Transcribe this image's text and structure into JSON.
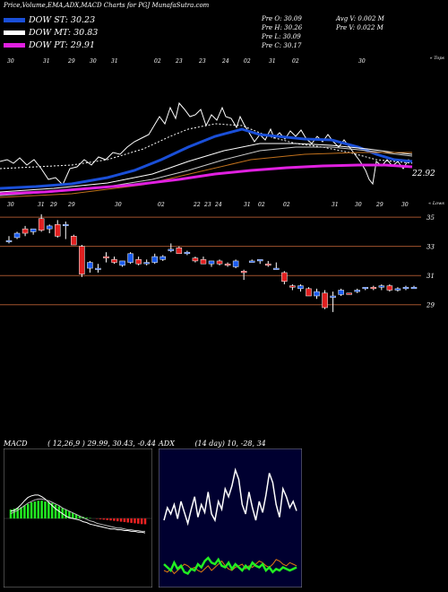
{
  "header": {
    "title": "Price,Volume,EMA,ADX,MACD Charts for PGJ MunafaSutra.com"
  },
  "legend": [
    {
      "label": "DOW ST: 30.23",
      "color": "#1a4fd8"
    },
    {
      "label": "DOW MT: 30.83",
      "color": "#ffffff"
    },
    {
      "label": "DOW PT: 29.91",
      "color": "#e020e0"
    }
  ],
  "quote": {
    "open": "Pre  O: 30.09",
    "high": "Pre  H: 30.26",
    "low": "Pre  L: 30.09",
    "close": "Pre  C: 30.17",
    "avg_volume": "Avg V: 0.002  M",
    "pre_volume": "Pre  V: 0.022  M"
  },
  "ema_panel": {
    "top_tag": "« Tops",
    "bottom_tag": "« Lows",
    "last_value": "22.92",
    "top_dates": [
      "30",
      "31",
      "29",
      "30",
      "31",
      "02",
      "23",
      "23",
      "24",
      "02",
      "31",
      "02",
      "30"
    ],
    "bottom_dates": [
      "30",
      "31",
      "29",
      "29",
      "30",
      "02",
      "22",
      "23",
      "24",
      "31",
      "02",
      "02",
      "31",
      "30",
      "29",
      "30"
    ]
  },
  "candle_panel": {
    "price_labels": [
      "35",
      "33",
      "31",
      "29"
    ]
  },
  "macd": {
    "label": "MACD",
    "params": "( 12,26,9 ) 29.99, 30.43, -0.44"
  },
  "adx": {
    "label": "ADX",
    "params": "(14 day) 10, -28, 34"
  },
  "colors": {
    "up": "#1a5cf0",
    "down": "#e02020",
    "ema_short": "#1a4fd8",
    "ema_long": "#e020e0",
    "grid": "#a0522d",
    "macd_hist": "#22ee22",
    "adx_green": "#22ee22",
    "adx_orange": "#e07a10",
    "adx_bg": "#000030"
  },
  "chart_data": {
    "type": "candlestick",
    "y_ticks": [
      35,
      33,
      31,
      29
    ],
    "ylim": [
      28,
      35.5
    ],
    "candles": [
      {
        "o": 33.4,
        "h": 33.7,
        "l": 33.2,
        "c": 33.4
      },
      {
        "o": 33.6,
        "h": 34.0,
        "l": 33.5,
        "c": 33.9
      },
      {
        "o": 34.2,
        "h": 34.4,
        "l": 33.7,
        "c": 33.9
      },
      {
        "o": 34.0,
        "h": 34.2,
        "l": 33.8,
        "c": 34.2
      },
      {
        "o": 34.9,
        "h": 35.2,
        "l": 34.0,
        "c": 34.1
      },
      {
        "o": 34.2,
        "h": 34.5,
        "l": 33.9,
        "c": 34.4
      },
      {
        "o": 34.5,
        "h": 34.8,
        "l": 33.6,
        "c": 33.7
      },
      {
        "o": 34.5,
        "h": 34.7,
        "l": 33.5,
        "c": 34.5
      },
      {
        "o": 33.7,
        "h": 33.8,
        "l": 33.1,
        "c": 33.1
      },
      {
        "o": 33.0,
        "h": 33.1,
        "l": 30.9,
        "c": 31.1
      },
      {
        "o": 31.5,
        "h": 32.0,
        "l": 31.2,
        "c": 31.9
      },
      {
        "o": 31.5,
        "h": 31.8,
        "l": 31.2,
        "c": 31.5
      },
      {
        "o": 32.3,
        "h": 32.6,
        "l": 31.9,
        "c": 32.2
      },
      {
        "o": 32.1,
        "h": 32.3,
        "l": 31.8,
        "c": 31.9
      },
      {
        "o": 31.7,
        "h": 32.0,
        "l": 31.6,
        "c": 32.0
      },
      {
        "o": 31.9,
        "h": 32.6,
        "l": 31.8,
        "c": 32.5
      },
      {
        "o": 32.1,
        "h": 32.3,
        "l": 31.7,
        "c": 31.8
      },
      {
        "o": 31.9,
        "h": 32.1,
        "l": 31.7,
        "c": 31.9
      },
      {
        "o": 31.9,
        "h": 32.5,
        "l": 31.8,
        "c": 32.3
      },
      {
        "o": 32.1,
        "h": 32.4,
        "l": 32.0,
        "c": 32.3
      },
      {
        "o": 32.7,
        "h": 33.2,
        "l": 32.6,
        "c": 32.8
      },
      {
        "o": 32.9,
        "h": 33.0,
        "l": 32.5,
        "c": 32.5
      },
      {
        "o": 32.5,
        "h": 32.7,
        "l": 32.4,
        "c": 32.6
      },
      {
        "o": 32.2,
        "h": 32.3,
        "l": 31.9,
        "c": 32.0
      },
      {
        "o": 32.1,
        "h": 32.3,
        "l": 31.8,
        "c": 31.8
      },
      {
        "o": 31.8,
        "h": 32.0,
        "l": 31.6,
        "c": 32.0
      },
      {
        "o": 32.0,
        "h": 32.1,
        "l": 31.7,
        "c": 31.8
      },
      {
        "o": 31.8,
        "h": 31.9,
        "l": 31.6,
        "c": 31.7
      },
      {
        "o": 31.6,
        "h": 32.1,
        "l": 31.5,
        "c": 32.0
      },
      {
        "o": 31.3,
        "h": 31.4,
        "l": 30.7,
        "c": 31.2
      },
      {
        "o": 31.9,
        "h": 32.1,
        "l": 31.9,
        "c": 32.0
      },
      {
        "o": 32.0,
        "h": 32.1,
        "l": 31.8,
        "c": 32.1
      },
      {
        "o": 31.8,
        "h": 32.0,
        "l": 31.6,
        "c": 31.7
      },
      {
        "o": 31.5,
        "h": 31.9,
        "l": 31.4,
        "c": 31.5
      },
      {
        "o": 31.2,
        "h": 31.3,
        "l": 30.4,
        "c": 30.6
      },
      {
        "o": 30.3,
        "h": 30.4,
        "l": 30.0,
        "c": 30.2
      },
      {
        "o": 30.1,
        "h": 30.4,
        "l": 29.9,
        "c": 30.3
      },
      {
        "o": 30.1,
        "h": 30.2,
        "l": 29.6,
        "c": 29.6
      },
      {
        "o": 29.6,
        "h": 30.1,
        "l": 29.4,
        "c": 29.9
      },
      {
        "o": 29.8,
        "h": 30.0,
        "l": 28.7,
        "c": 28.8
      },
      {
        "o": 29.5,
        "h": 29.9,
        "l": 28.5,
        "c": 29.6
      },
      {
        "o": 29.7,
        "h": 30.1,
        "l": 29.6,
        "c": 30.0
      },
      {
        "o": 29.8,
        "h": 29.8,
        "l": 29.7,
        "c": 29.7
      },
      {
        "o": 29.9,
        "h": 30.1,
        "l": 29.8,
        "c": 30.0
      },
      {
        "o": 30.1,
        "h": 30.2,
        "l": 30.0,
        "c": 30.2
      },
      {
        "o": 30.2,
        "h": 30.3,
        "l": 30.0,
        "c": 30.1
      },
      {
        "o": 30.2,
        "h": 30.4,
        "l": 30.0,
        "c": 30.3
      },
      {
        "o": 30.3,
        "h": 30.4,
        "l": 29.9,
        "c": 30.0
      },
      {
        "o": 30.0,
        "h": 30.2,
        "l": 29.9,
        "c": 30.1
      },
      {
        "o": 30.1,
        "h": 30.3,
        "l": 30.0,
        "c": 30.2
      },
      {
        "o": 30.1,
        "h": 30.3,
        "l": 30.1,
        "c": 30.2
      }
    ],
    "macd_hist": [
      1.1,
      1.2,
      1.3,
      1.4,
      1.6,
      1.8,
      2.0,
      2.1,
      2.2,
      2.2,
      2.1,
      2.0,
      1.9,
      1.7,
      1.5,
      1.3,
      1.1,
      0.9,
      0.7,
      0.5,
      0.3,
      0.2,
      0.1,
      0.05,
      0.0,
      -0.05,
      -0.1,
      -0.15,
      -0.2,
      -0.25,
      -0.3,
      -0.35,
      -0.4,
      -0.45,
      -0.5,
      -0.55,
      -0.6,
      -0.65,
      -0.7,
      -0.72
    ],
    "macd_line": [
      0.9,
      1.0,
      1.3,
      1.7,
      2.2,
      2.6,
      2.8,
      2.9,
      2.9,
      2.7,
      2.4,
      2.0,
      1.6,
      1.2,
      0.9,
      0.6,
      0.3,
      0.1,
      0.0,
      -0.1,
      -0.2,
      -0.4,
      -0.5,
      -0.7,
      -0.8,
      -0.9,
      -1.0,
      -1.1,
      -1.2,
      -1.3,
      -1.3,
      -1.4,
      -1.4,
      -1.5,
      -1.5,
      -1.6,
      -1.6,
      -1.7,
      -1.7,
      -1.8
    ],
    "signal_line": [
      0.6,
      0.8,
      1.0,
      1.3,
      1.6,
      1.9,
      2.1,
      2.3,
      2.4,
      2.4,
      2.3,
      2.2,
      2.0,
      1.8,
      1.6,
      1.3,
      1.1,
      0.9,
      0.7,
      0.5,
      0.3,
      0.1,
      -0.1,
      -0.3,
      -0.4,
      -0.6,
      -0.7,
      -0.8,
      -0.9,
      -1.0,
      -1.1,
      -1.2,
      -1.2,
      -1.3,
      -1.4,
      -1.4,
      -1.5,
      -1.5,
      -1.6,
      -1.6
    ],
    "adx_white": [
      40,
      48,
      44,
      50,
      41,
      52,
      45,
      38,
      47,
      55,
      42,
      50,
      45,
      58,
      44,
      40,
      52,
      47,
      60,
      55,
      62,
      72,
      66,
      50,
      44,
      58,
      48,
      40,
      52,
      45,
      56,
      70,
      64,
      50,
      42,
      60,
      55,
      48,
      52,
      46
    ],
    "adx_green": [
      12,
      10,
      8,
      13,
      9,
      11,
      7,
      6,
      9,
      8,
      12,
      10,
      14,
      16,
      13,
      12,
      15,
      11,
      10,
      13,
      9,
      12,
      10,
      8,
      11,
      9,
      13,
      11,
      10,
      12,
      8,
      10,
      7,
      9,
      8,
      10,
      9,
      8,
      9,
      10
    ],
    "adx_orange": [
      8,
      7,
      9,
      6,
      8,
      10,
      12,
      11,
      9,
      10,
      8,
      7,
      9,
      11,
      8,
      10,
      12,
      14,
      11,
      9,
      8,
      10,
      11,
      12,
      9,
      11,
      10,
      12,
      14,
      13,
      11,
      10,
      12,
      15,
      14,
      12,
      11,
      13,
      12,
      11
    ]
  }
}
